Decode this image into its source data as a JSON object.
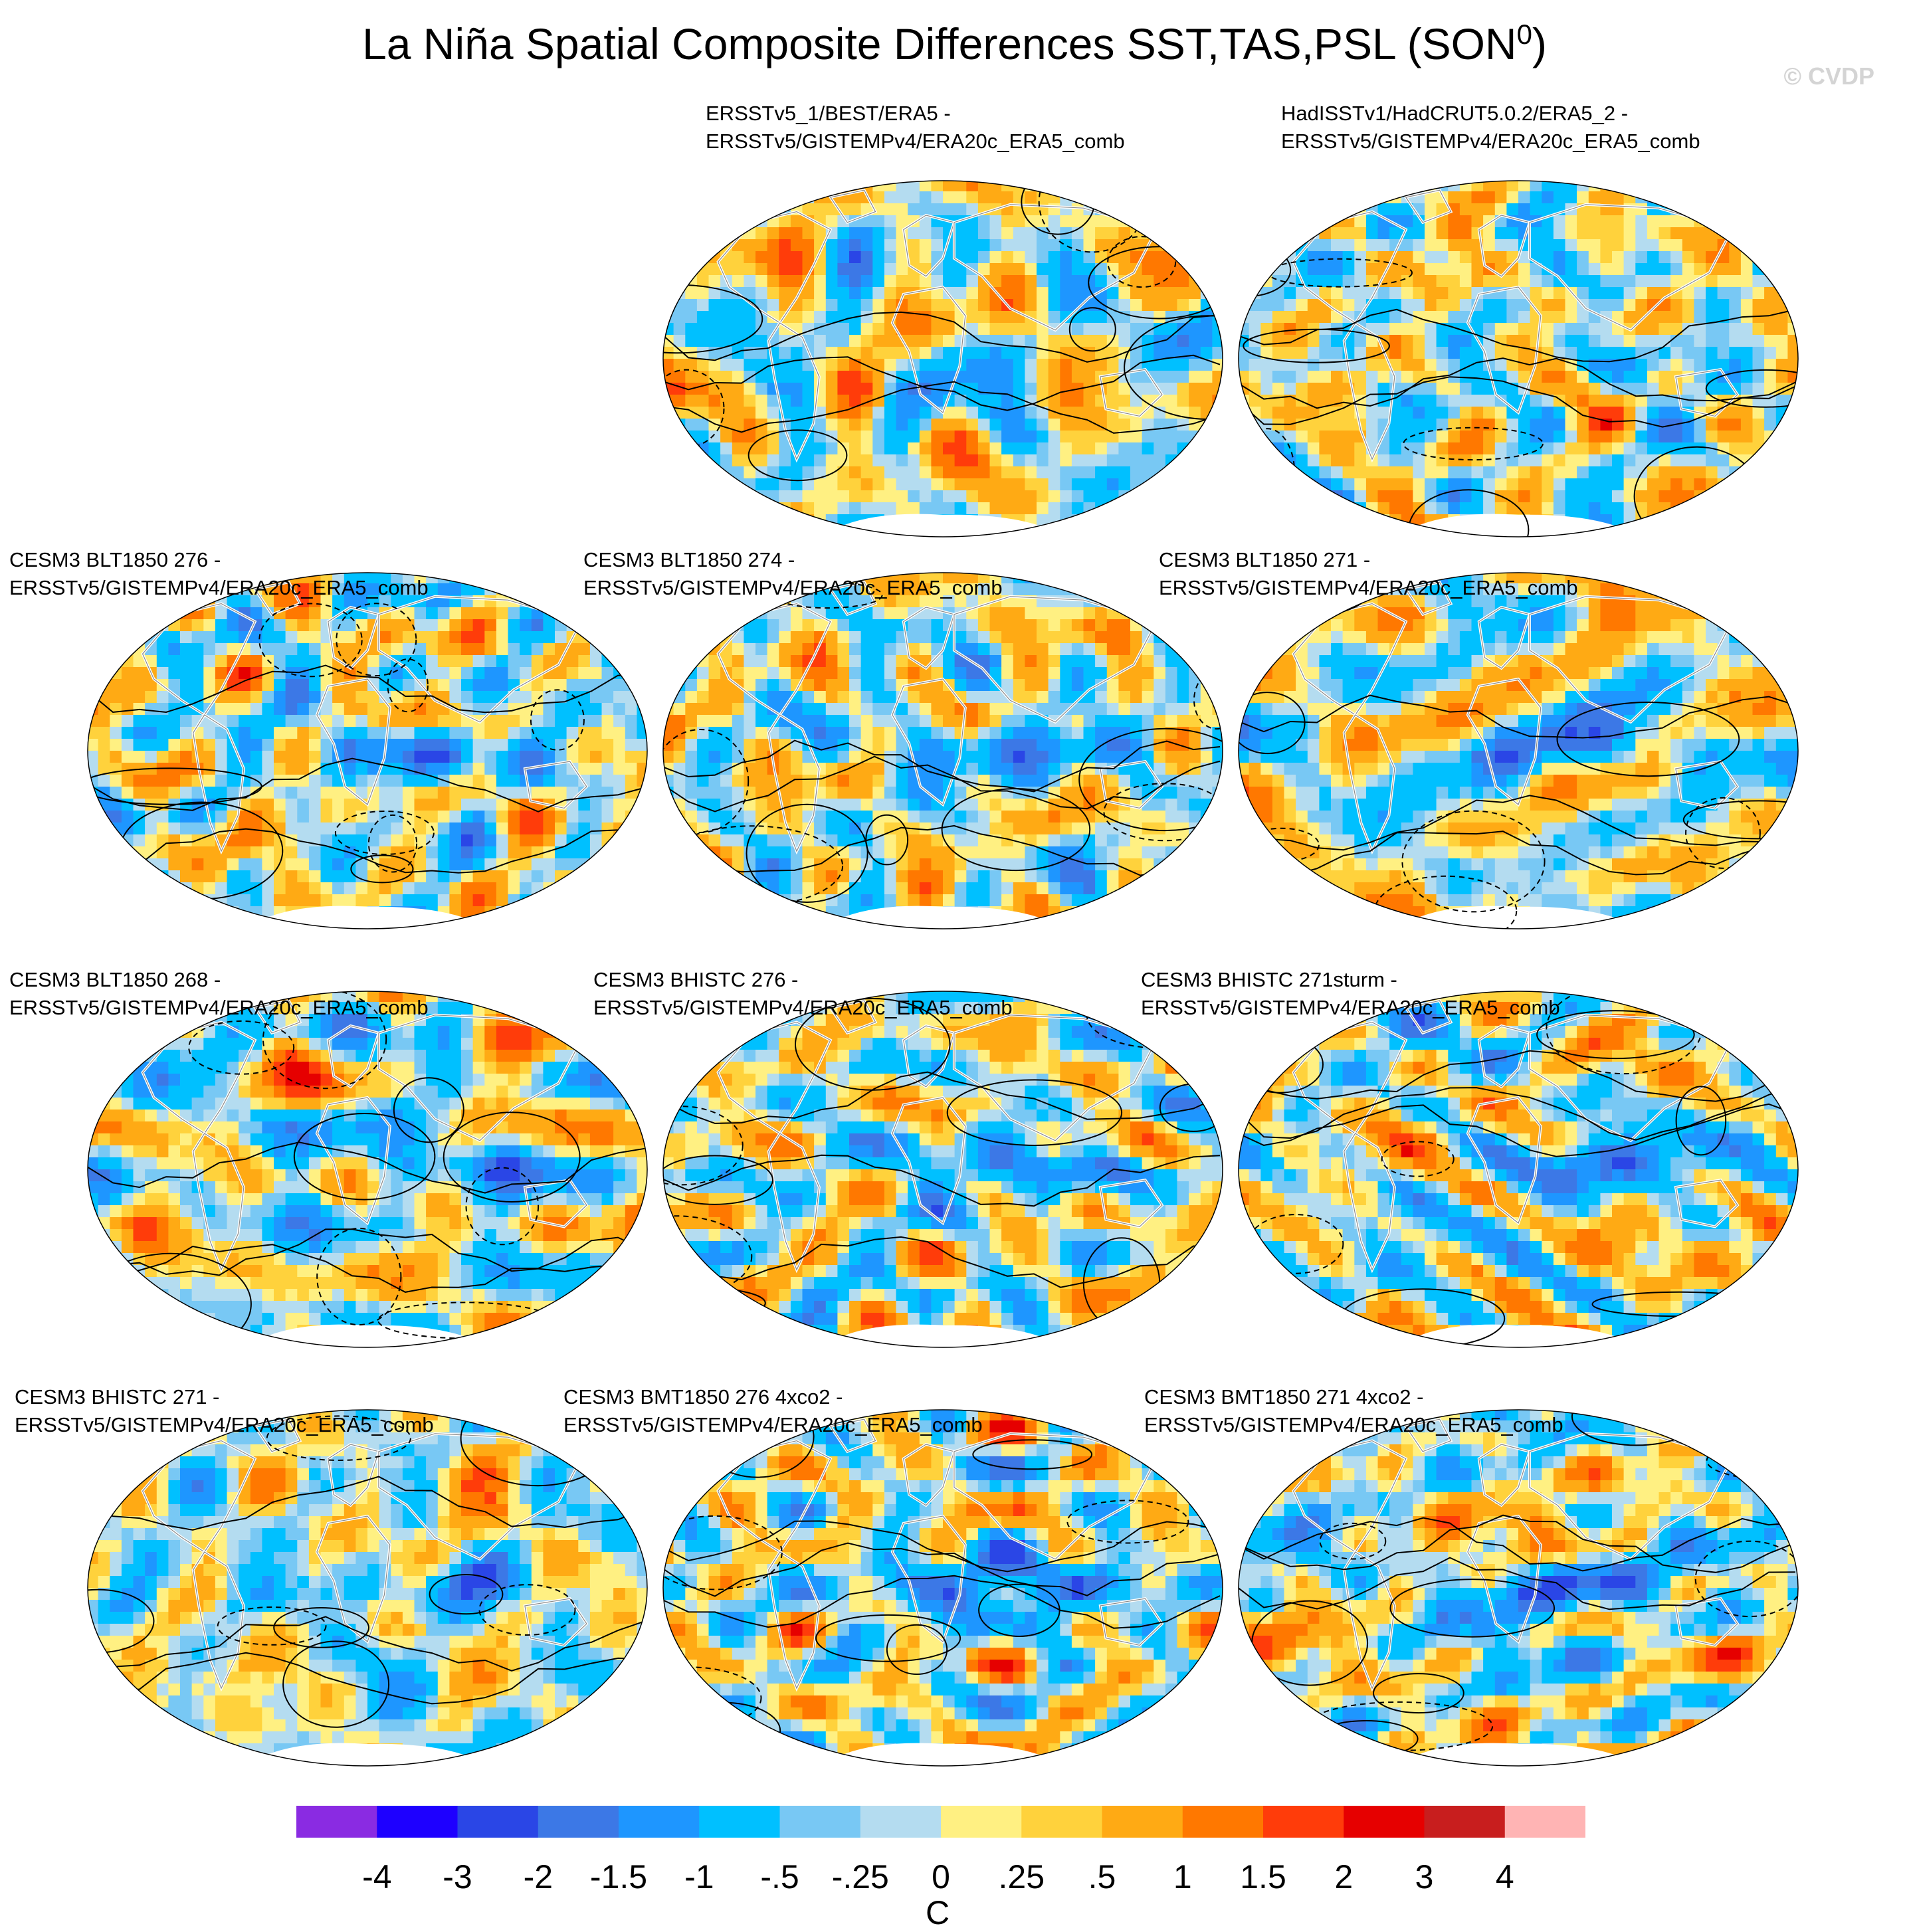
{
  "title": {
    "main": "La Niña Spatial Composite Differences SST,TAS,PSL (SON",
    "sup": "0",
    "close": ")"
  },
  "watermark": "© CVDP",
  "colors": {
    "land_outline": "#ffffff",
    "coast": "#8c8c8c",
    "contour": "#000000",
    "antarctica": "#ffffff"
  },
  "panels": [
    {
      "label": "ERSSTv5_1/BEST/ERA5 -\nERSSTv5/GISTEMPv4/ERA20c_ERA5_comb",
      "seed": 11,
      "enso": 0.35
    },
    {
      "label": "HadISSTv1/HadCRUT5.0.2/ERA5_2 -\nERSSTv5/GISTEMPv4/ERA20c_ERA5_comb",
      "seed": 23,
      "enso": 0.3
    },
    {
      "label": "CESM3 BLT1850 276 - ERSSTv5/GISTEMPv4/ERA20c_ERA5_comb",
      "seed": 37,
      "enso": 1.3
    },
    {
      "label": "CESM3 BLT1850 274 - ERSSTv5/GISTEMPv4/ERA20c_ERA5_comb",
      "seed": 41,
      "enso": 1.4
    },
    {
      "label": "CESM3 BLT1850 271 - ERSSTv5/GISTEMPv4/ERA20c_ERA5_comb",
      "seed": 53,
      "enso": 1.3
    },
    {
      "label": "CESM3 BLT1850 268 - ERSSTv5/GISTEMPv4/ERA20c_ERA5_comb",
      "seed": 67,
      "enso": 1.2
    },
    {
      "label": "CESM3 BHISTC 276 - ERSSTv5/GISTEMPv4/ERA20c_ERA5_comb",
      "seed": 71,
      "enso": 1.3
    },
    {
      "label": "CESM3 BHISTC 271sturm - ERSSTv5/GISTEMPv4/ERA20c_ERA5_comb",
      "seed": 83,
      "enso": 1.4
    },
    {
      "label": "CESM3 BHISTC 271 - ERSSTv5/GISTEMPv4/ERA20c_ERA5_comb",
      "seed": 97,
      "enso": 1.3
    },
    {
      "label": "CESM3 BMT1850 276 4xco2 - ERSSTv5/GISTEMPv4/ERA20c_ERA5_comb",
      "seed": 103,
      "enso": 2.1
    },
    {
      "label": "CESM3 BMT1850 271 4xco2 - ERSSTv5/GISTEMPv4/ERA20c_ERA5_comb",
      "seed": 113,
      "enso": 1.8
    }
  ],
  "colorbar": {
    "colors": [
      "#8a2be2",
      "#1e00ff",
      "#2a46e6",
      "#3c78e6",
      "#1e96ff",
      "#00c0ff",
      "#78c8f4",
      "#b4dcf0",
      "#fff082",
      "#ffd23c",
      "#ffaa14",
      "#ff7800",
      "#ff3c0a",
      "#e60000",
      "#c81e1e",
      "#ffb4b4"
    ],
    "levels": [
      "-4",
      "-3",
      "-2",
      "-1.5",
      "-1",
      "-.5",
      "-.25",
      "0",
      ".25",
      ".5",
      "1",
      "1.5",
      "2",
      "3",
      "4"
    ],
    "units": "C"
  },
  "chart_data": {
    "type": "heatmap",
    "title": "La Niña Spatial Composite Differences SST,TAS,PSL (SON0)",
    "variables": [
      "SST",
      "TAS",
      "PSL (contours)"
    ],
    "season": "SON",
    "projection": "Robinson (global)",
    "units": "C",
    "contour_levels": [
      -4,
      -3,
      -2,
      -1.5,
      -1,
      -0.5,
      -0.25,
      0,
      0.25,
      0.5,
      1,
      1.5,
      2,
      3,
      4
    ],
    "panel_count": 11,
    "reference": "ERSSTv5/GISTEMPv4/ERA20c_ERA5_comb"
  }
}
